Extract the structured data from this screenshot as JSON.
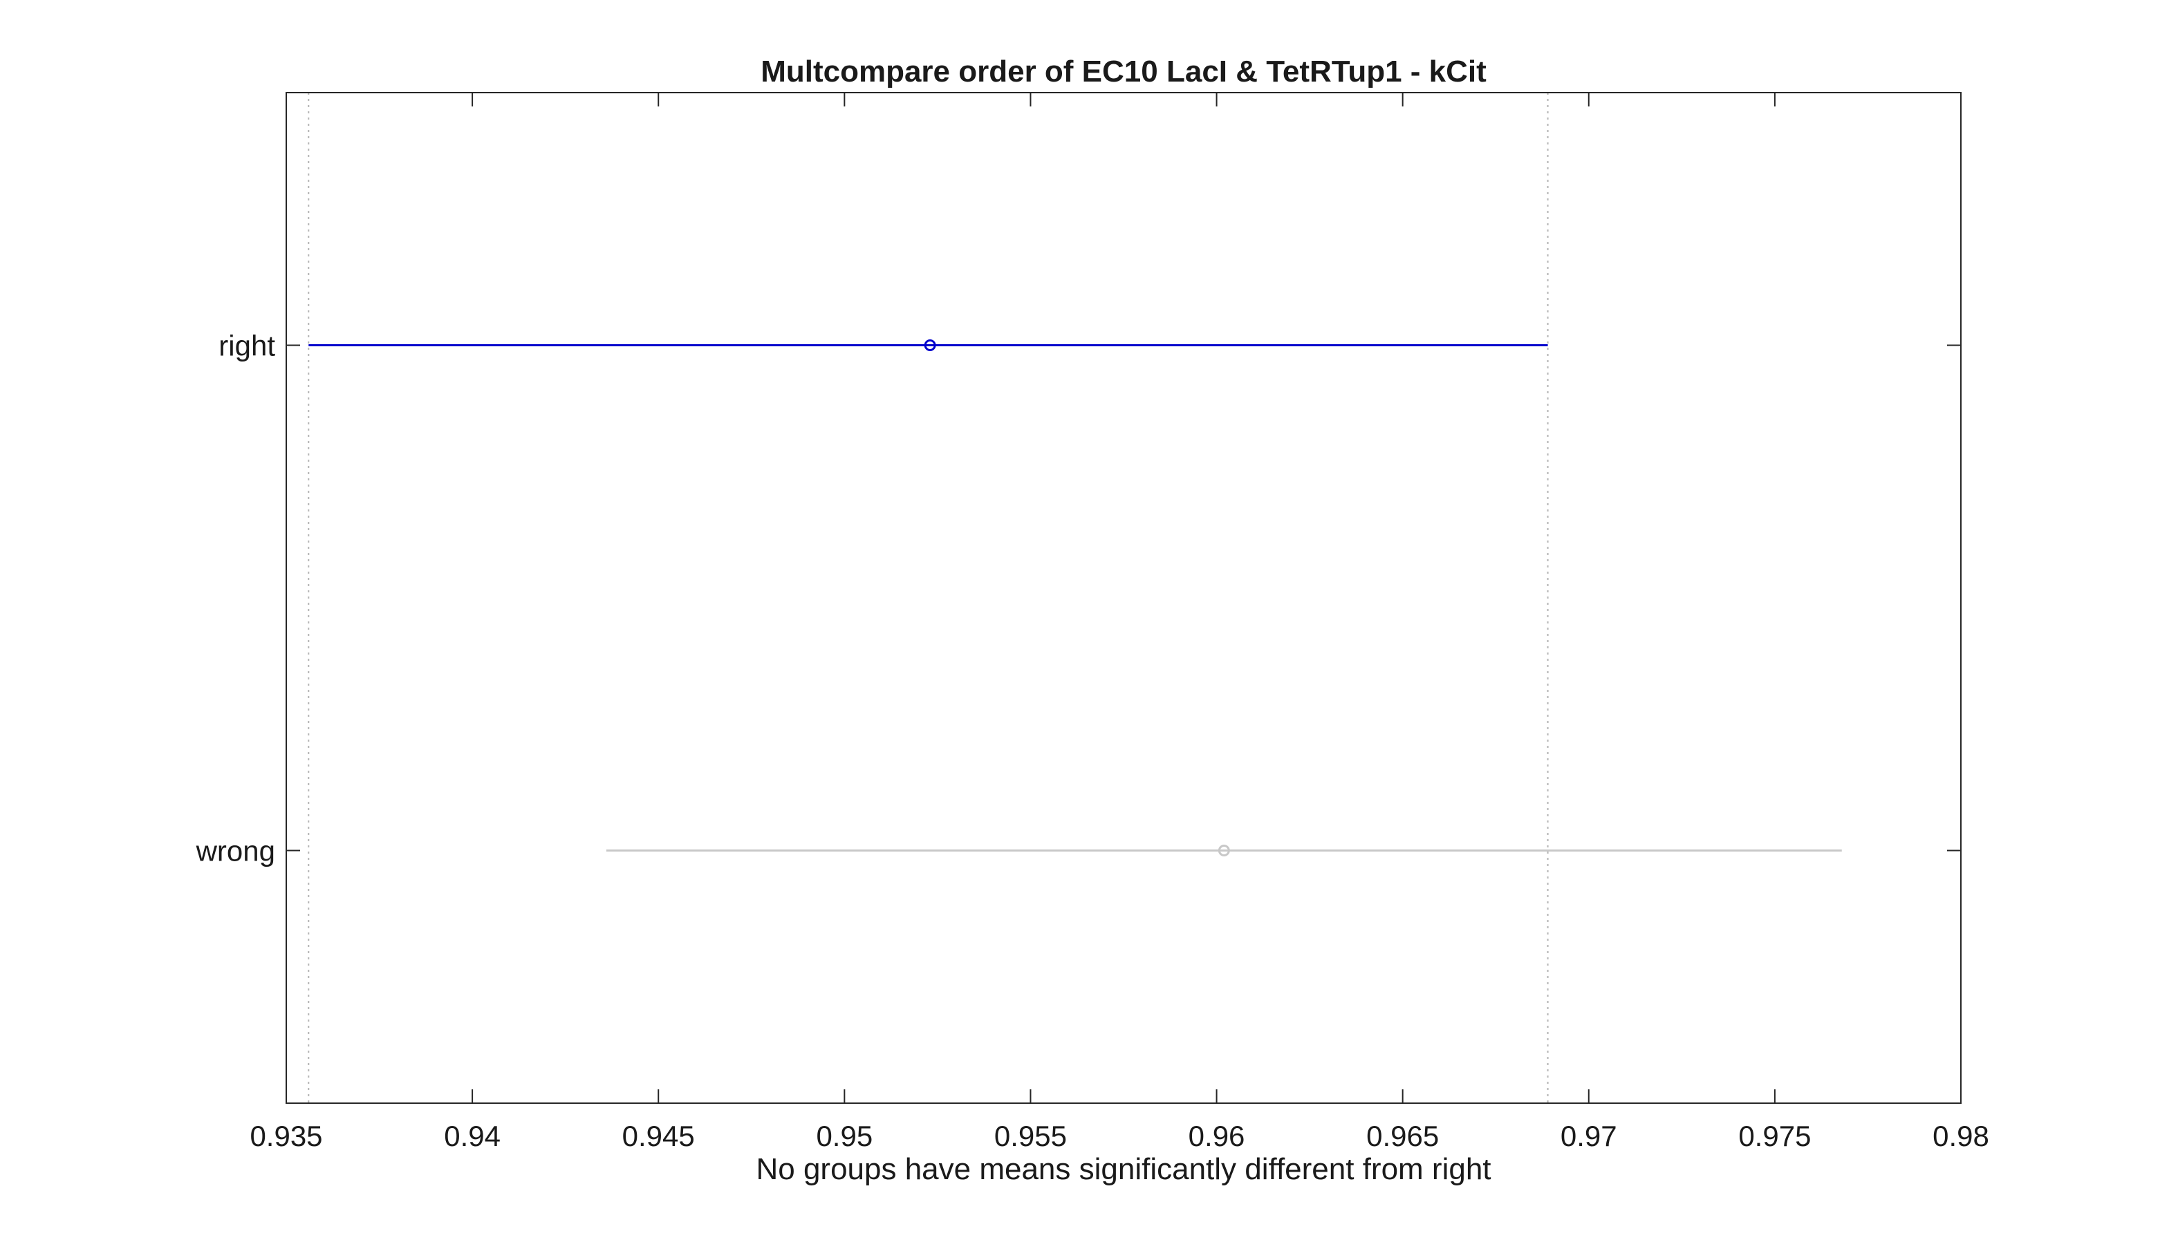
{
  "chart_data": {
    "type": "interval",
    "title": "Multcompare order of EC10 LacI & TetRTup1 - kCit",
    "xlabel": "No groups have means significantly different from right",
    "ylabel": "",
    "xlim": [
      0.935,
      0.98
    ],
    "x_ticks": [
      0.935,
      0.94,
      0.945,
      0.95,
      0.955,
      0.96,
      0.965,
      0.97,
      0.975,
      0.98
    ],
    "x_tick_labels": [
      "0.935",
      "0.94",
      "0.945",
      "0.95",
      "0.955",
      "0.96",
      "0.965",
      "0.97",
      "0.975",
      "0.98"
    ],
    "categories": [
      "right",
      "wrong"
    ],
    "groups": [
      {
        "label": "right",
        "mean": 0.9523,
        "lower": 0.9356,
        "upper": 0.9689,
        "selected": true,
        "color": "#0000cc"
      },
      {
        "label": "wrong",
        "mean": 0.9602,
        "lower": 0.9436,
        "upper": 0.9768,
        "selected": false,
        "color": "#c8c8c8"
      }
    ],
    "reference_lines": [
      0.9356,
      0.9689
    ],
    "reference_line_style": "dotted",
    "grid": false,
    "legend": "none"
  }
}
